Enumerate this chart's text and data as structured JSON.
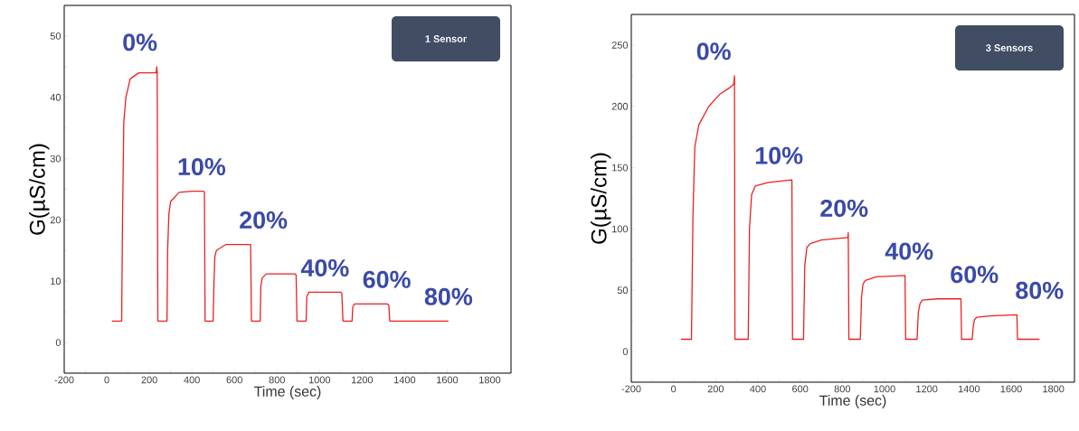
{
  "chart_data": [
    {
      "type": "line",
      "xlabel": "Time (sec)",
      "ylabel": "G(µS/cm)",
      "xlim": [
        -200,
        1900
      ],
      "ylim": [
        -5,
        55
      ],
      "xticks": [
        -200,
        0,
        200,
        400,
        600,
        800,
        1000,
        1200,
        1400,
        1600,
        1800
      ],
      "yticks": [
        0,
        10,
        20,
        30,
        40,
        50
      ],
      "grid": false,
      "marker": "none",
      "line_style": "solid",
      "series": [
        {
          "color": "#ee2020",
          "x": [
            24,
            70,
            74,
            80,
            90,
            110,
            150,
            200,
            232,
            235,
            237,
            240,
            283,
            286,
            292,
            300,
            340,
            400,
            455,
            459,
            462,
            500,
            504,
            508,
            515,
            560,
            670,
            676,
            680,
            721,
            724,
            730,
            750,
            885,
            890,
            894,
            937,
            940,
            950,
            1100,
            1105,
            1110,
            1153,
            1156,
            1165,
            1320,
            1326,
            1330,
            1606
          ],
          "values": [
            3.5,
            3.5,
            20,
            36,
            40,
            43,
            44,
            44,
            44,
            45,
            44,
            3.5,
            3.5,
            15,
            21,
            23,
            24.5,
            24.7,
            24.7,
            24.5,
            3.5,
            3.5,
            10,
            14,
            15,
            16,
            16,
            16,
            3.5,
            3.5,
            9,
            10.5,
            11.2,
            11.2,
            11,
            3.5,
            3.5,
            7.5,
            8.2,
            8.2,
            8,
            3.5,
            3.5,
            5.8,
            6.3,
            6.3,
            6,
            3.5,
            3.5
          ]
        }
      ],
      "annotations": [
        "0%",
        "10%",
        "20%",
        "40%",
        "60%",
        "80%",
        "1 Sensor"
      ]
    },
    {
      "type": "line",
      "xlabel": "Time (sec)",
      "ylabel": "G(µS/cm)",
      "xlim": [
        -200,
        1900
      ],
      "ylim": [
        -25,
        275
      ],
      "xticks": [
        -200,
        0,
        200,
        400,
        600,
        800,
        1000,
        1200,
        1400,
        1600,
        1800
      ],
      "yticks": [
        0,
        50,
        100,
        150,
        200,
        250
      ],
      "grid": false,
      "marker": "none",
      "line_style": "solid",
      "series": [
        {
          "color": "#ee2020",
          "x": [
            36,
            85,
            92,
            101,
            120,
            167,
            220,
            264,
            285,
            289,
            291,
            354,
            360,
            370,
            387,
            450,
            558,
            561,
            564,
            616,
            622,
            632,
            648,
            700,
            826,
            828,
            831,
            885,
            891,
            898,
            909,
            960,
            1097,
            1100,
            1154,
            1160,
            1168,
            1179,
            1250,
            1362,
            1365,
            1415,
            1420,
            1426,
            1437,
            1500,
            1627,
            1630,
            1734
          ],
          "values": [
            10,
            10,
            110,
            167,
            185,
            200,
            210,
            215,
            218,
            225,
            10,
            10,
            100,
            128,
            135,
            138,
            140,
            140,
            10,
            10,
            70,
            85,
            88,
            91,
            93,
            97,
            10,
            10,
            45,
            55,
            58,
            61,
            62,
            10,
            10,
            32,
            39,
            42,
            43,
            43,
            10,
            10,
            20,
            26,
            28,
            29,
            30,
            10,
            10
          ]
        }
      ],
      "annotations": [
        "0%",
        "10%",
        "20%",
        "40%",
        "60%",
        "80%",
        "3 Sensors"
      ]
    }
  ]
}
